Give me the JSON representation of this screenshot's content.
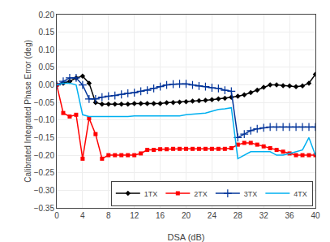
{
  "chart_data": {
    "type": "line",
    "xlabel": "DSA (dB)",
    "ylabel": "Calibrated Integrated Phase Error (deg)",
    "x": [
      0,
      1,
      2,
      3,
      4,
      5,
      6,
      7,
      8,
      9,
      10,
      11,
      12,
      13,
      14,
      15,
      16,
      17,
      18,
      19,
      20,
      21,
      22,
      23,
      24,
      25,
      26,
      27,
      28,
      29,
      30,
      31,
      32,
      33,
      34,
      35,
      36,
      37,
      38,
      39,
      40
    ],
    "series": [
      {
        "name": "1TX",
        "color": "#000000",
        "marker": "diamond",
        "values": [
          0.0,
          0.005,
          0.01,
          0.02,
          0.025,
          0.005,
          -0.05,
          -0.055,
          -0.055,
          -0.055,
          -0.055,
          -0.055,
          -0.053,
          -0.053,
          -0.053,
          -0.053,
          -0.053,
          -0.051,
          -0.05,
          -0.049,
          -0.048,
          -0.046,
          -0.045,
          -0.044,
          -0.042,
          -0.04,
          -0.038,
          -0.035,
          -0.032,
          -0.028,
          -0.022,
          -0.015,
          -0.007,
          0.0,
          0.0,
          -0.002,
          -0.003,
          -0.005,
          -0.003,
          0.005,
          0.03
        ]
      },
      {
        "name": "2TX",
        "color": "#ff0000",
        "marker": "square",
        "values": [
          0.0,
          -0.08,
          -0.09,
          -0.085,
          -0.21,
          -0.095,
          -0.14,
          -0.21,
          -0.2,
          -0.2,
          -0.2,
          -0.2,
          -0.2,
          -0.195,
          -0.185,
          -0.185,
          -0.183,
          -0.183,
          -0.182,
          -0.182,
          -0.182,
          -0.182,
          -0.182,
          -0.182,
          -0.182,
          -0.182,
          -0.182,
          -0.18,
          -0.17,
          -0.165,
          -0.165,
          -0.17,
          -0.175,
          -0.18,
          -0.185,
          -0.19,
          -0.195,
          -0.2,
          -0.2,
          -0.2,
          -0.2
        ]
      },
      {
        "name": "3TX",
        "color": "#003399",
        "marker": "plus",
        "values": [
          0.0,
          0.01,
          0.02,
          0.02,
          0.0,
          -0.04,
          -0.04,
          -0.035,
          -0.032,
          -0.03,
          -0.027,
          -0.024,
          -0.022,
          -0.018,
          -0.015,
          -0.01,
          -0.005,
          0.0,
          0.002,
          0.003,
          0.003,
          0.0,
          -0.003,
          -0.005,
          -0.008,
          -0.01,
          -0.015,
          -0.018,
          -0.15,
          -0.14,
          -0.13,
          -0.125,
          -0.122,
          -0.12,
          -0.12,
          -0.12,
          -0.12,
          -0.12,
          -0.12,
          -0.12,
          -0.12
        ]
      },
      {
        "name": "4TX",
        "color": "#00b0f0",
        "values": [
          0.0,
          0.005,
          0.005,
          0.0,
          -0.085,
          -0.09,
          -0.09,
          -0.09,
          -0.09,
          -0.09,
          -0.09,
          -0.09,
          -0.088,
          -0.088,
          -0.088,
          -0.088,
          -0.088,
          -0.088,
          -0.088,
          -0.088,
          -0.085,
          -0.083,
          -0.082,
          -0.08,
          -0.075,
          -0.07,
          -0.068,
          -0.065,
          -0.21,
          -0.2,
          -0.19,
          -0.19,
          -0.19,
          -0.19,
          -0.2,
          -0.2,
          -0.195,
          -0.19,
          -0.185,
          -0.15,
          -0.2
        ]
      }
    ],
    "xlim": [
      0,
      40
    ],
    "xticks": [
      0,
      4,
      8,
      12,
      16,
      20,
      24,
      28,
      32,
      36,
      40
    ],
    "ylim": [
      -0.35,
      0.2
    ],
    "yticks": [
      {
        "value": -0.35,
        "label": "−0.35"
      },
      {
        "value": -0.3,
        "label": "−0.30"
      },
      {
        "value": -0.25,
        "label": "−0.25"
      },
      {
        "value": -0.2,
        "label": "−0.20"
      },
      {
        "value": -0.15,
        "label": "−0.15"
      },
      {
        "value": -0.1,
        "label": "−0.10"
      },
      {
        "value": -0.05,
        "label": "−0.05"
      },
      {
        "value": 0.0,
        "label": "0.00"
      },
      {
        "value": 0.05,
        "label": "0.05"
      },
      {
        "value": 0.1,
        "label": "0.10"
      },
      {
        "value": 0.15,
        "label": "0.15"
      },
      {
        "value": 0.2,
        "label": "0.20"
      }
    ],
    "grid": true,
    "legend": "lower right"
  }
}
